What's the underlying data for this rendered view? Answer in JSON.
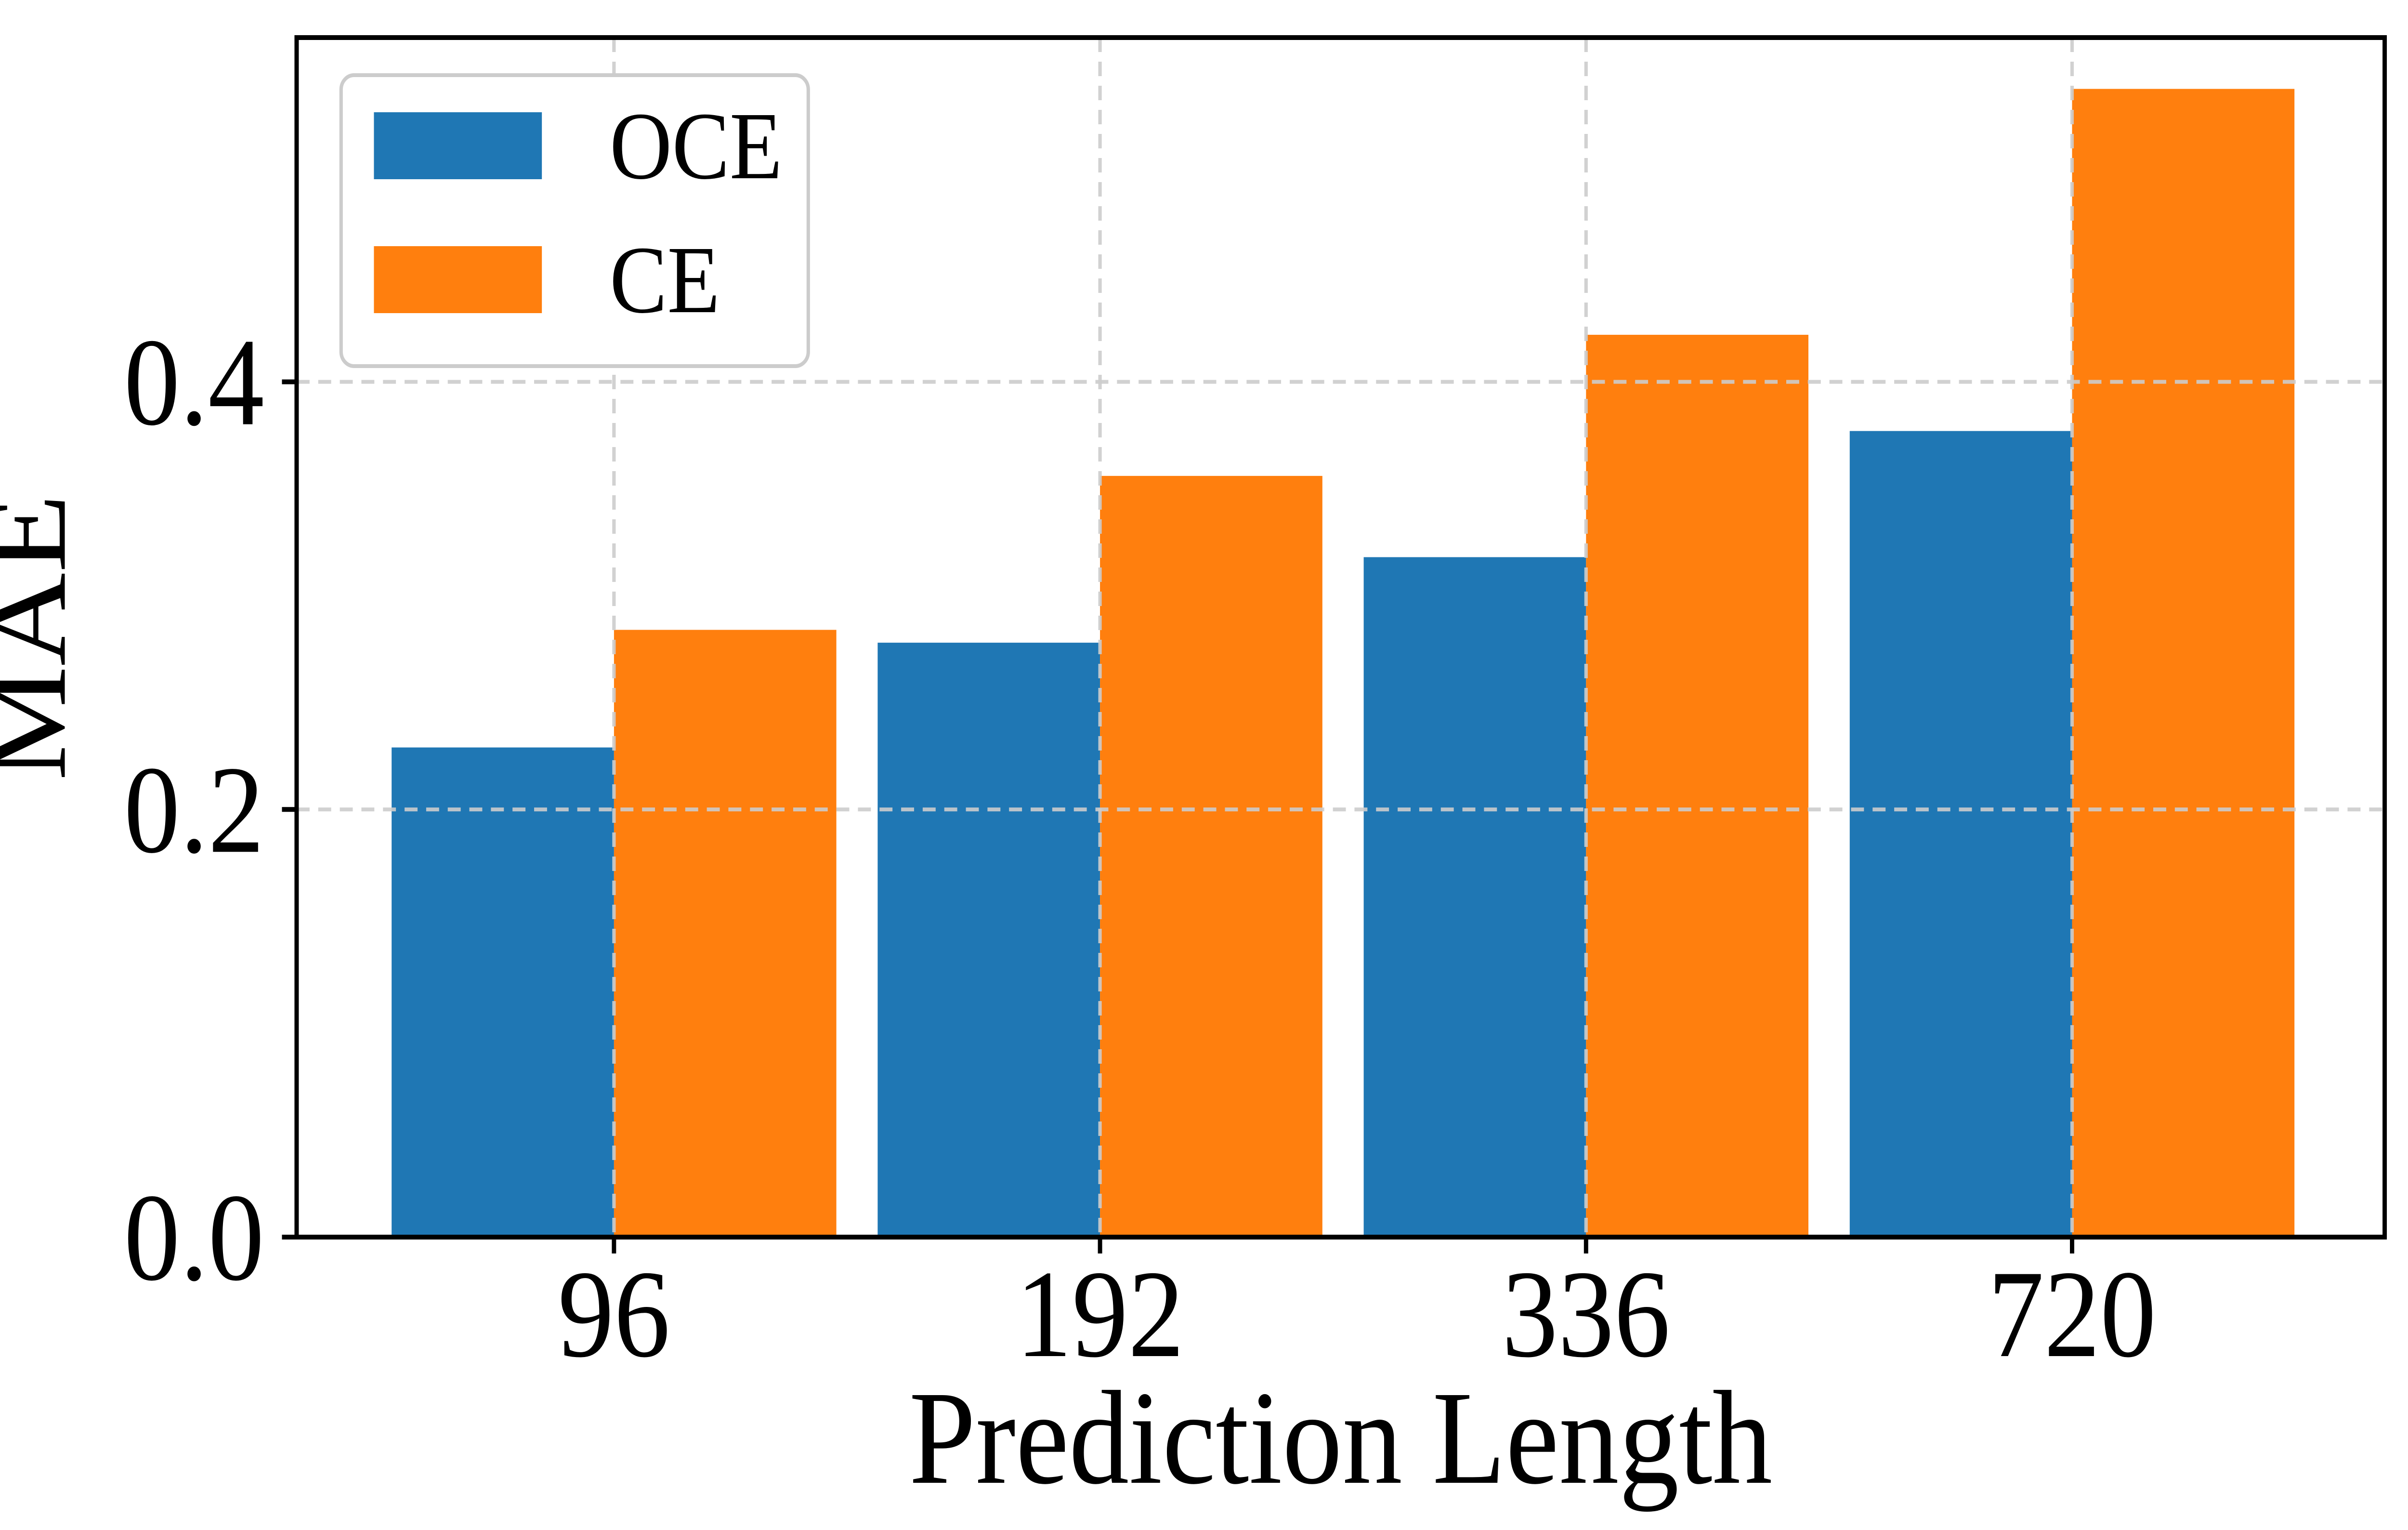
{
  "figure": {
    "background": "#ffffff",
    "frame_color": "#000000",
    "grid_color": "#cccccc",
    "grid_style": "dashed",
    "legend_border_color": "#cccccc"
  },
  "chart_data": {
    "type": "bar",
    "title": "",
    "xlabel": "Prediction Length",
    "ylabel": "MAE",
    "categories": [
      "96",
      "192",
      "336",
      "720"
    ],
    "series": [
      {
        "name": "OCE",
        "color": "#1f77b4",
        "values": [
          0.229,
          0.278,
          0.318,
          0.377
        ]
      },
      {
        "name": "CE",
        "color": "#ff7f0e",
        "values": [
          0.284,
          0.356,
          0.422,
          0.537
        ]
      }
    ],
    "ylim": [
      0,
      0.561
    ],
    "yticks": [
      {
        "value": 0.0,
        "label": "0.0"
      },
      {
        "value": 0.2,
        "label": "0.2"
      },
      {
        "value": 0.4,
        "label": "0.4"
      }
    ],
    "grid": "dashed gridlines at y-ticks and x-category centers, drawn above bars",
    "legend_position": "upper left"
  }
}
